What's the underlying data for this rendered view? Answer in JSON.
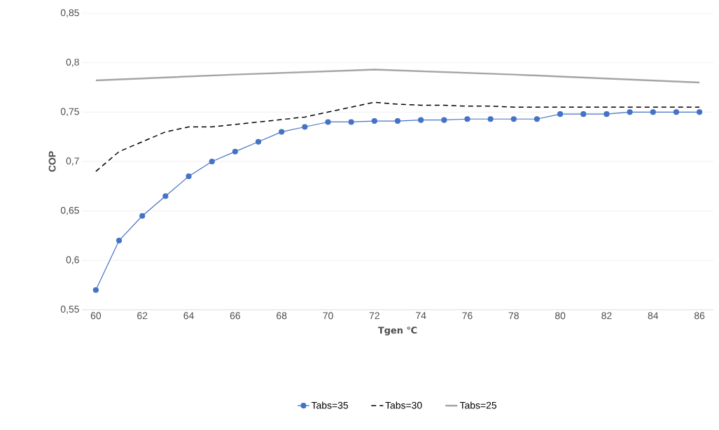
{
  "chart_data": {
    "type": "line",
    "xlabel": "Tgen ℃",
    "ylabel": "COP",
    "xlim": [
      59.4,
      86.6
    ],
    "ylim": [
      0.55,
      0.85
    ],
    "xticks": [
      60,
      62,
      64,
      66,
      68,
      70,
      72,
      74,
      76,
      78,
      80,
      82,
      84,
      86
    ],
    "yticks": [
      {
        "value": 0.55,
        "label": "0,55"
      },
      {
        "value": 0.6,
        "label": "0,6"
      },
      {
        "value": 0.65,
        "label": "0,65"
      },
      {
        "value": 0.7,
        "label": "0,7"
      },
      {
        "value": 0.75,
        "label": "0,75"
      },
      {
        "value": 0.8,
        "label": "0,8"
      },
      {
        "value": 0.85,
        "label": "0,85"
      }
    ],
    "grid": "y",
    "legend": "bottom",
    "x": [
      60,
      61,
      62,
      63,
      64,
      65,
      66,
      67,
      68,
      69,
      70,
      71,
      72,
      73,
      74,
      75,
      76,
      77,
      78,
      79,
      80,
      81,
      82,
      83,
      84,
      85,
      86
    ],
    "series": [
      {
        "name": "Tabs=35",
        "color": "#4472c4",
        "marker": "circle",
        "line_style": "solid",
        "values": [
          0.57,
          0.62,
          0.645,
          0.665,
          0.685,
          0.7,
          0.71,
          0.72,
          0.73,
          0.735,
          0.74,
          0.74,
          0.741,
          0.741,
          0.742,
          0.742,
          0.743,
          0.743,
          0.743,
          0.743,
          0.748,
          0.748,
          0.748,
          0.75,
          0.75,
          0.75,
          0.75
        ]
      },
      {
        "name": "Tabs=30",
        "color": "#000000",
        "marker": "none",
        "line_style": "dashed",
        "values": [
          0.69,
          0.71,
          0.72,
          0.73,
          0.735,
          0.735,
          0.7375,
          0.74,
          0.7425,
          0.745,
          0.75,
          0.755,
          0.76,
          0.758,
          0.757,
          0.757,
          0.756,
          0.756,
          0.755,
          0.755,
          0.755,
          0.755,
          0.755,
          0.755,
          0.755,
          0.755,
          0.755
        ]
      },
      {
        "name": "Tabs=25",
        "color": "#a5a5a5",
        "marker": "none",
        "line_style": "solid",
        "x": [
          60,
          66,
          72,
          78,
          80,
          86
        ],
        "values": [
          0.782,
          0.788,
          0.793,
          0.788,
          0.786,
          0.78
        ]
      }
    ]
  }
}
